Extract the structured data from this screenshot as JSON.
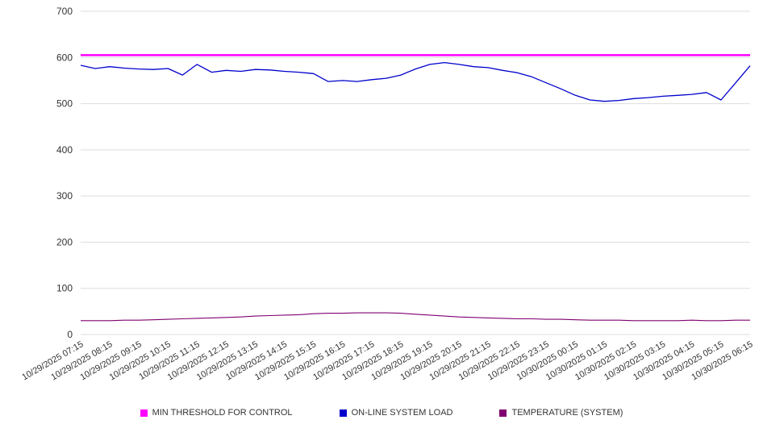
{
  "chart_data": {
    "type": "line",
    "title": "",
    "xlabel": "",
    "ylabel": "",
    "ylim": [
      0,
      700
    ],
    "y_ticks": [
      0,
      100,
      200,
      300,
      400,
      500,
      600,
      700
    ],
    "grid": "horizontal",
    "legend_position": "bottom",
    "x_labels": [
      "10/29/2025 07:15",
      "10/29/2025 08:15",
      "10/29/2025 09:15",
      "10/29/2025 10:15",
      "10/29/2025 11:15",
      "10/29/2025 12:15",
      "10/29/2025 13:15",
      "10/29/2025 14:15",
      "10/29/2025 15:15",
      "10/29/2025 16:15",
      "10/29/2025 17:15",
      "10/29/2025 18:15",
      "10/29/2025 19:15",
      "10/29/2025 20:15",
      "10/29/2025 21:15",
      "10/29/2025 22:15",
      "10/29/2025 23:15",
      "10/30/2025 00:15",
      "10/30/2025 01:15",
      "10/30/2025 02:15",
      "10/30/2025 03:15",
      "10/30/2025 04:15",
      "10/30/2025 05:15",
      "10/30/2025 06:15"
    ],
    "series": [
      {
        "name": "MIN THRESHOLD FOR CONTROL",
        "color": "#ff00ff",
        "stroke_width": 2.5,
        "values": [
          605,
          605
        ]
      },
      {
        "name": "ON-LINE SYSTEM LOAD",
        "color": "#0000cc",
        "stroke_width": 1.3,
        "values": [
          583,
          576,
          580,
          577,
          575,
          574,
          576,
          562,
          585,
          568,
          572,
          570,
          574,
          573,
          570,
          568,
          565,
          548,
          550,
          548,
          552,
          555,
          562,
          575,
          585,
          589,
          585,
          580,
          578,
          572,
          567,
          558,
          545,
          532,
          518,
          508,
          505,
          507,
          511,
          513,
          516,
          518,
          520,
          524,
          508,
          545,
          582
        ]
      },
      {
        "name": "TEMPERATURE (SYSTEM)",
        "color": "#800070",
        "stroke_width": 1.1,
        "values": [
          30,
          30,
          30,
          31,
          31,
          32,
          33,
          34,
          35,
          36,
          37,
          38,
          40,
          41,
          42,
          43,
          45,
          46,
          46,
          47,
          47,
          47,
          46,
          44,
          42,
          40,
          38,
          37,
          36,
          35,
          34,
          34,
          33,
          33,
          32,
          31,
          31,
          31,
          30,
          30,
          30,
          30,
          31,
          30,
          30,
          31,
          31
        ]
      }
    ]
  },
  "style": {
    "grid_color": "#dddddd",
    "axis_text_color": "#333333"
  }
}
